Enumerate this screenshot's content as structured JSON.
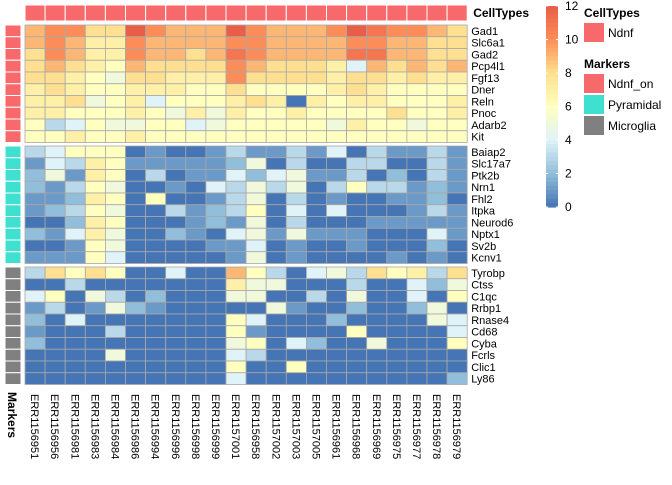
{
  "chart_data": {
    "type": "heatmap",
    "samples": [
      "ERR1156951",
      "ERR1156956",
      "ERR1156981",
      "ERR1156983",
      "ERR1156984",
      "ERR1156986",
      "ERR1156994",
      "ERR1156996",
      "ERR1156998",
      "ERR1156999",
      "ERR1157001",
      "ERR1156958",
      "ERR1157002",
      "ERR1157003",
      "ERR1157005",
      "ERR1156961",
      "ERR1156968",
      "ERR1156969",
      "ERR1156975",
      "ERR1156977",
      "ERR1156978",
      "ERR1156979"
    ],
    "column_annotation": {
      "title": "CellTypes",
      "value": "Ndnf"
    },
    "row_annotation_title": "Markers",
    "groups": [
      {
        "marker": "Ndnf_on",
        "genes": [
          "Gad1",
          "Slc6a1",
          "Gad2",
          "Pcp4l1",
          "Fgf13",
          "Dner",
          "Reln",
          "Pnoc",
          "Adarb2",
          "Kit"
        ],
        "values": [
          [
            9,
            10,
            10,
            8,
            8,
            12,
            10,
            9,
            9,
            9,
            12,
            10,
            9,
            9,
            9,
            10,
            12,
            11,
            10,
            10,
            9,
            8
          ],
          [
            9,
            10,
            9,
            7,
            7,
            10,
            9,
            9,
            9,
            9,
            10,
            10,
            9,
            9,
            9,
            9,
            10,
            10,
            9,
            9,
            8,
            8
          ],
          [
            8,
            10,
            9,
            7,
            7,
            10,
            9,
            9,
            8,
            9,
            11,
            10,
            9,
            9,
            9,
            9,
            11,
            11,
            9,
            9,
            8,
            8
          ],
          [
            8,
            9,
            8,
            7,
            6,
            9,
            8,
            8,
            8,
            8,
            10,
            9,
            8,
            8,
            8,
            7,
            4,
            9,
            8,
            9,
            8,
            9
          ],
          [
            8,
            8,
            7,
            6,
            5,
            8,
            8,
            7,
            7,
            7,
            10,
            8,
            8,
            8,
            8,
            7,
            8,
            8,
            7,
            8,
            7,
            7
          ],
          [
            7,
            8,
            7,
            6,
            6,
            7,
            7,
            7,
            6,
            6,
            8,
            6,
            6,
            6,
            6,
            7,
            8,
            7,
            6,
            6,
            6,
            6
          ],
          [
            7,
            7,
            8,
            5,
            6,
            7,
            4,
            6,
            6,
            6,
            7,
            8,
            7,
            0,
            7,
            6,
            7,
            7,
            6,
            6,
            6,
            7
          ],
          [
            7,
            7,
            6,
            6,
            6,
            7,
            6,
            5,
            7,
            5,
            7,
            6,
            6,
            7,
            6,
            6,
            6,
            6,
            8,
            6,
            6,
            7
          ],
          [
            6,
            3,
            4,
            6,
            5,
            5,
            6,
            6,
            4,
            5,
            6,
            6,
            6,
            6,
            6,
            5,
            7,
            6,
            6,
            5,
            6,
            6
          ],
          [
            6,
            6,
            7,
            6,
            6,
            7,
            6,
            6,
            6,
            6,
            6,
            6,
            6,
            6,
            6,
            6,
            6,
            6,
            6,
            6,
            6,
            6
          ]
        ]
      },
      {
        "marker": "Pyramidal",
        "genes": [
          "Baiap2",
          "Slc17a7",
          "Ptk2b",
          "Nrn1",
          "Fhl2",
          "Itpka",
          "Neurod6",
          "Nptx1",
          "Sv2b",
          "Kcnv1"
        ],
        "values": [
          [
            3,
            4,
            6,
            6,
            6,
            0,
            1,
            0,
            0,
            1,
            3,
            1,
            1,
            3,
            1,
            4,
            0,
            3,
            1,
            1,
            3,
            1
          ],
          [
            1,
            4,
            3,
            7,
            6,
            1,
            1,
            1,
            1,
            1,
            2,
            5,
            0,
            3,
            0,
            0,
            3,
            3,
            0,
            0,
            3,
            1
          ],
          [
            2,
            5,
            1,
            7,
            6,
            0,
            3,
            0,
            1,
            1,
            4,
            2,
            4,
            5,
            1,
            1,
            3,
            0,
            2,
            0,
            3,
            1
          ],
          [
            2,
            1,
            3,
            6,
            5,
            0,
            0,
            1,
            0,
            4,
            3,
            5,
            3,
            5,
            0,
            3,
            6,
            3,
            3,
            1,
            2,
            1
          ],
          [
            1,
            1,
            2,
            7,
            6,
            0,
            6,
            0,
            0,
            1,
            3,
            5,
            0,
            3,
            0,
            1,
            0,
            0,
            1,
            1,
            2,
            0
          ],
          [
            1,
            2,
            3,
            6,
            5,
            0,
            0,
            3,
            1,
            2,
            3,
            6,
            0,
            4,
            0,
            4,
            0,
            0,
            0,
            1,
            3,
            1
          ],
          [
            0,
            0,
            2,
            7,
            6,
            0,
            0,
            0,
            1,
            2,
            1,
            5,
            0,
            3,
            0,
            0,
            0,
            1,
            1,
            1,
            1,
            1
          ],
          [
            2,
            1,
            4,
            7,
            5,
            0,
            0,
            2,
            1,
            0,
            4,
            5,
            1,
            5,
            1,
            1,
            1,
            0,
            0,
            0,
            4,
            1
          ],
          [
            0,
            0,
            1,
            6,
            5,
            0,
            0,
            0,
            0,
            1,
            1,
            4,
            0,
            1,
            0,
            0,
            1,
            0,
            0,
            0,
            2,
            0
          ],
          [
            1,
            1,
            1,
            6,
            4,
            0,
            0,
            0,
            0,
            0,
            1,
            5,
            0,
            1,
            0,
            0,
            0,
            0,
            1,
            0,
            1,
            0
          ]
        ]
      },
      {
        "marker": "Microglia",
        "genes": [
          "Tyrobp",
          "Ctss",
          "C1qc",
          "Rrbp1",
          "Rnase4",
          "Cd68",
          "Cyba",
          "Fcrls",
          "Clic1",
          "Ly86"
        ],
        "values": [
          [
            3,
            8,
            6,
            8,
            6,
            0,
            0,
            4,
            0,
            0,
            9,
            6,
            3,
            0,
            4,
            5,
            3,
            8,
            6,
            7,
            3,
            8
          ],
          [
            0,
            0,
            3,
            0,
            0,
            0,
            0,
            0,
            0,
            0,
            7,
            5,
            5,
            0,
            0,
            0,
            3,
            0,
            0,
            4,
            2,
            5
          ],
          [
            4,
            6,
            0,
            5,
            3,
            0,
            2,
            0,
            0,
            0,
            5,
            5,
            0,
            0,
            3,
            0,
            5,
            0,
            0,
            4,
            0,
            6
          ],
          [
            1,
            3,
            0,
            1,
            5,
            2,
            1,
            0,
            0,
            0,
            0,
            0,
            5,
            1,
            0,
            0,
            2,
            0,
            0,
            2,
            5,
            0
          ],
          [
            2,
            0,
            4,
            0,
            0,
            0,
            0,
            0,
            0,
            0,
            6,
            4,
            0,
            0,
            0,
            2,
            0,
            0,
            0,
            0,
            5,
            4
          ],
          [
            1,
            0,
            0,
            0,
            3,
            0,
            0,
            0,
            0,
            0,
            6,
            1,
            0,
            0,
            0,
            0,
            6,
            0,
            0,
            0,
            0,
            4
          ],
          [
            2,
            0,
            0,
            0,
            0,
            0,
            0,
            0,
            0,
            0,
            5,
            6,
            0,
            4,
            2,
            0,
            0,
            5,
            0,
            0,
            0,
            6
          ],
          [
            0,
            0,
            0,
            0,
            5,
            0,
            0,
            0,
            0,
            0,
            4,
            3,
            0,
            0,
            0,
            0,
            0,
            0,
            0,
            0,
            0,
            0
          ],
          [
            0,
            0,
            0,
            0,
            0,
            0,
            0,
            0,
            0,
            0,
            6,
            0,
            0,
            6,
            0,
            0,
            0,
            0,
            0,
            0,
            0,
            0
          ],
          [
            0,
            0,
            0,
            0,
            0,
            0,
            0,
            0,
            0,
            0,
            4,
            0,
            0,
            0,
            0,
            0,
            0,
            0,
            0,
            0,
            0,
            2
          ]
        ]
      }
    ],
    "scale": {
      "min": 0,
      "max": 12,
      "ticks": [
        0,
        2,
        4,
        6,
        8,
        10,
        12
      ]
    },
    "legends": [
      {
        "title": "CellTypes",
        "items": [
          {
            "label": "Ndnf",
            "color": "#f8696b"
          }
        ]
      },
      {
        "title": "Markers",
        "items": [
          {
            "label": "Ndnf_on",
            "color": "#f8696b"
          },
          {
            "label": "Pyramidal",
            "color": "#40e0d0"
          },
          {
            "label": "Microglia",
            "color": "#808080"
          }
        ]
      }
    ],
    "colors": {
      "stops": [
        "#4575b4",
        "#91bfdb",
        "#e0f3f8",
        "#ffffbf",
        "#fee090",
        "#fc8d59",
        "#e95e48"
      ],
      "Ndnf": "#f8696b",
      "Ndnf_on": "#f8696b",
      "Pyramidal": "#40e0d0",
      "Microglia": "#808080"
    }
  }
}
